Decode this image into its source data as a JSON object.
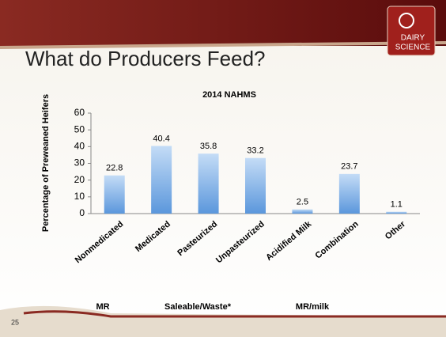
{
  "slide_title": "What do Producers Feed?",
  "logo": {
    "line1": "DAIRY",
    "line2": "SCIENCE"
  },
  "slide_number": "25",
  "chart_data": {
    "type": "bar",
    "title": "2014 NAHMS",
    "y_label": "Percentage of Preweaned Heifers",
    "categories": [
      "Nonmedicated",
      "Medicated",
      "Pasteurized",
      "Unpasteurized",
      "Acidified Milk",
      "Combination",
      "Other"
    ],
    "values": [
      22.8,
      40.4,
      35.8,
      33.2,
      2.5,
      23.7,
      1.1
    ],
    "color": "#6fa8e8",
    "ylim": [
      0,
      60
    ],
    "yticks": [
      0,
      10,
      20,
      30,
      40,
      50,
      60
    ],
    "annotations": [
      "MR",
      "Saleable/Waste*",
      "MR/milk"
    ]
  }
}
